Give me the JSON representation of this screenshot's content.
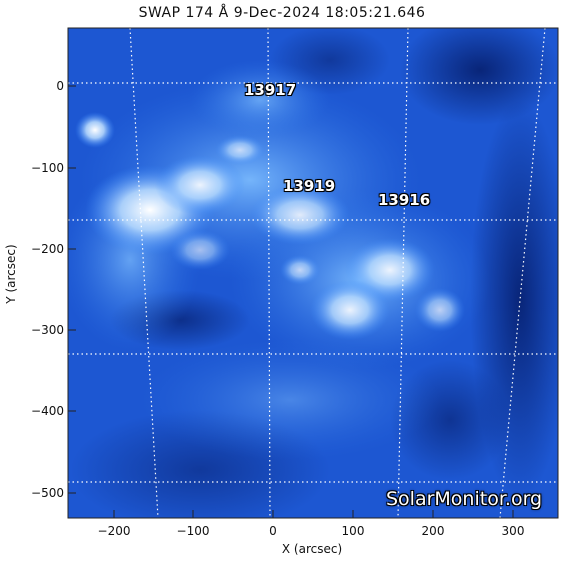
{
  "title": "SWAP 174 Å  9-Dec-2024 18:05:21.646",
  "x_axis_label": "X (arcsec)",
  "y_axis_label": "Y (arcsec)",
  "x_ticks": [
    "−200",
    "−100",
    "0",
    "100",
    "200",
    "300"
  ],
  "y_ticks": [
    "0",
    "−100",
    "−200",
    "−300",
    "−400",
    "−500"
  ],
  "regions": [
    {
      "label": "13917"
    },
    {
      "label": "13919"
    },
    {
      "label": "13916"
    }
  ],
  "watermark": "SolarMonitor.org",
  "colors": {
    "background": "#0a2a8a",
    "bright": "#e8f4ff",
    "mid": "#2d79e8"
  }
}
